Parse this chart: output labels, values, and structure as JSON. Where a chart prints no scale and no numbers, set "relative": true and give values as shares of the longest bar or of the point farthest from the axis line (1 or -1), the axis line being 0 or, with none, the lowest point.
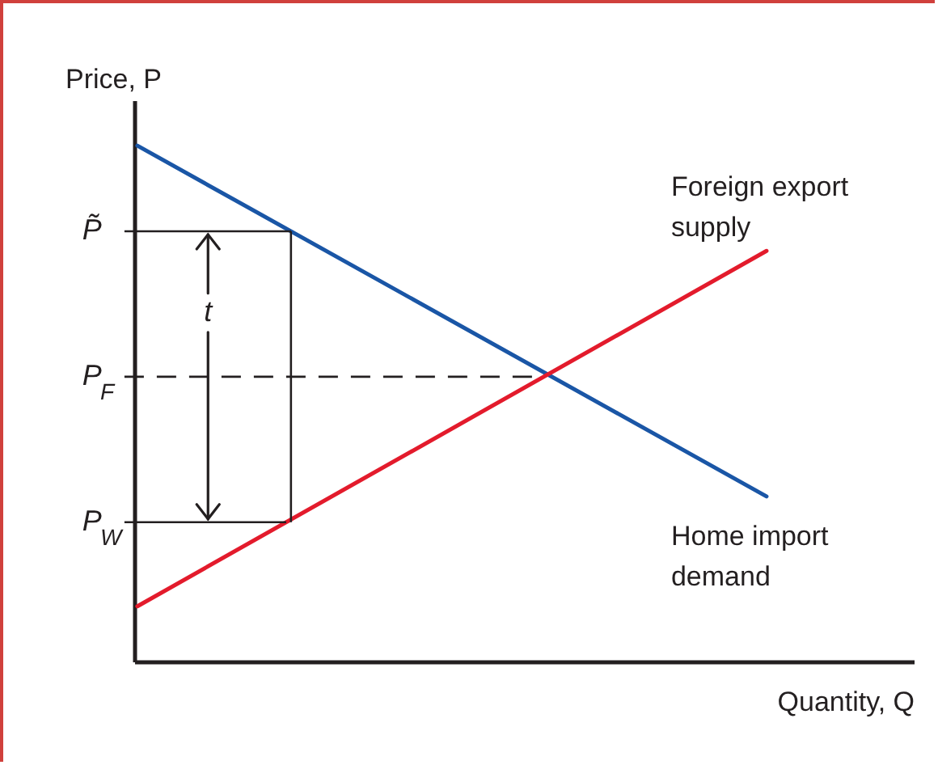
{
  "chart_data": {
    "type": "line",
    "relative": true,
    "xlabel": "Quantity, Q",
    "ylabel": "Price, P",
    "categories": [
      null,
      null
    ],
    "series": [
      {
        "name": "Home import demand",
        "color": "#1a56a6",
        "values": [
          1,
          0.32
        ]
      },
      {
        "name": "Foreign export supply",
        "color": "#e31b2c",
        "values": [
          0.107,
          0.796
        ]
      }
    ],
    "ref_lines": [
      {
        "axis": "y",
        "value": 0.834,
        "label": "P̃",
        "color": "#231f20"
      },
      {
        "axis": "y",
        "value": 0.552,
        "label": "P$_{F}$",
        "color": "#231f20",
        "line_style": "dashed"
      },
      {
        "axis": "y",
        "value": 0.27,
        "label": "P$_{W}$",
        "color": "#231f20"
      }
    ],
    "annotations": [
      "t"
    ],
    "marker": "none",
    "line_style": "solid"
  }
}
